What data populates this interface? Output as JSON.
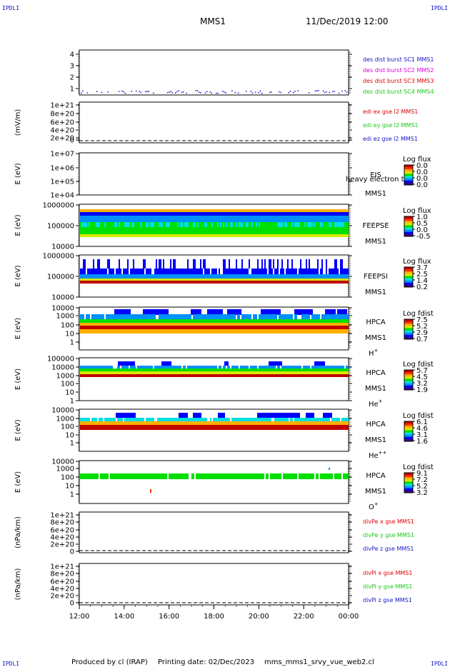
{
  "corner_tag": "IPDLI",
  "header": {
    "mission": "MMS1",
    "datetime": "11/Dec/2019 12:00"
  },
  "footer": {
    "produced_by": "Produced by cl (IRAP)",
    "printing_date": "Printing date: 02/Dec/2023",
    "script": "mms_mms1_srvy_vue_web2.cl"
  },
  "colors": {
    "series_blue": "#1212c8",
    "series_magenta": "#e000e0",
    "series_red": "#e00000",
    "series_green": "#18c818"
  },
  "colormap": [
    "#3a0080",
    "#0000ff",
    "#0090ff",
    "#00e0e0",
    "#00e000",
    "#d8e800",
    "#ffb000",
    "#ff3000",
    "#c00000"
  ],
  "chart_data": [
    {
      "id": "burst",
      "type": "scatter",
      "ylabel": "",
      "yticks": [
        "4",
        "3",
        "2",
        "1"
      ],
      "ylim": [
        0.5,
        4.3
      ],
      "legend": [
        "des dist burst SC1 MMS1",
        "des dist burst SC2 MMS2",
        "des dist burst SC3 MMS3",
        "des dist burst SC4 MMS4"
      ]
    },
    {
      "id": "edi",
      "type": "line",
      "ylabel": "(mV/m)",
      "yticks": [
        "1e+21",
        "8e+20",
        "6e+20",
        "4e+20",
        "2e+20",
        "0"
      ],
      "ylim": [
        0,
        1e+21
      ],
      "legend": [
        "edi ex gse l2 MMS1",
        "edi ey gse l2 MMS1",
        "edi ez gse l2 MMS1"
      ]
    },
    {
      "id": "eis",
      "type": "heatmap",
      "ylabel": "E (eV)",
      "yticks": [
        "1e+07",
        "1e+06",
        "1e+05",
        "1e+04"
      ],
      "ylim": [
        10000.0,
        10000000.0
      ],
      "scale": "log",
      "labels": [
        "EIS",
        "MMS1"
      ],
      "overlay": "heavy electron to",
      "colorbar_title": "Log flux",
      "colorbar_ticks": [
        "0.0",
        "0.0",
        "0.0",
        "0.0"
      ]
    },
    {
      "id": "feepse",
      "type": "heatmap",
      "ylabel": "E (eV)",
      "yticks": [
        "1000000",
        "100000",
        "10000"
      ],
      "ylim": [
        10000.0,
        1000000.0
      ],
      "scale": "log",
      "labels": [
        "FEEPSE",
        "MMS1"
      ],
      "colorbar_title": "Log flux",
      "colorbar_ticks": [
        "1.0",
        "0.5",
        "0.0",
        "-0.5"
      ]
    },
    {
      "id": "feepsi",
      "type": "heatmap",
      "ylabel": "E (eV)",
      "yticks": [
        "1000000",
        "100000",
        "10000"
      ],
      "ylim": [
        10000.0,
        1000000.0
      ],
      "scale": "log",
      "labels": [
        "FEEPSI",
        "MMS1"
      ],
      "colorbar_title": "Log flux",
      "colorbar_ticks": [
        "3.7",
        "2.5",
        "1.4",
        "0.2"
      ]
    },
    {
      "id": "hpca_h",
      "type": "heatmap",
      "ylabel": "E (eV)",
      "yticks": [
        "10000",
        "1000",
        "100",
        "10",
        "1"
      ],
      "ylim": [
        1,
        40000
      ],
      "scale": "log",
      "labels": [
        "HPCA",
        "MMS1"
      ],
      "species": "H",
      "charge": "+",
      "colorbar_title": "Log fdist",
      "colorbar_ticks": [
        "7.5",
        "5.2",
        "2.9",
        "0.7"
      ]
    },
    {
      "id": "hpca_he",
      "type": "heatmap",
      "ylabel": "E (eV)",
      "yticks": [
        "100000",
        "10000",
        "1000",
        "100",
        "10",
        "1"
      ],
      "ylim": [
        1,
        100000
      ],
      "scale": "log",
      "labels": [
        "HPCA",
        "MMS1"
      ],
      "species": "He",
      "charge": "+",
      "colorbar_title": "Log fdist",
      "colorbar_ticks": [
        "5.7",
        "4.5",
        "3.2",
        "1.9"
      ]
    },
    {
      "id": "hpca_hepp",
      "type": "heatmap",
      "ylabel": "E (eV)",
      "yticks": [
        "10000",
        "1000",
        "100",
        "10",
        "1"
      ],
      "ylim": [
        1,
        40000
      ],
      "scale": "log",
      "labels": [
        "HPCA",
        "MMS1"
      ],
      "species": "He",
      "charge": "++",
      "colorbar_title": "Log fdist",
      "colorbar_ticks": [
        "6.1",
        "4.6",
        "3.1",
        "1.6"
      ]
    },
    {
      "id": "hpca_o",
      "type": "heatmap",
      "ylabel": "E (eV)",
      "yticks": [
        "10000",
        "1000",
        "100",
        "10",
        "1"
      ],
      "ylim": [
        1,
        40000
      ],
      "scale": "log",
      "labels": [
        "HPCA",
        "MMS1"
      ],
      "species": "O",
      "charge": "+",
      "colorbar_title": "Log fdist",
      "colorbar_ticks": [
        "9.1",
        "7.2",
        "5.2",
        "3.2"
      ]
    },
    {
      "id": "divpe",
      "type": "line",
      "ylabel": "(nPa/km)",
      "yticks": [
        "1e+21",
        "8e+20",
        "6e+20",
        "4e+20",
        "2e+20",
        "0"
      ],
      "ylim": [
        0,
        1e+21
      ],
      "legend": [
        "divPe x gse MMS1",
        "divPe y gse MMS1",
        "divPe z gse MMS1"
      ]
    },
    {
      "id": "divpi",
      "type": "line",
      "ylabel": "(nPa/km)",
      "yticks": [
        "1e+21",
        "8e+20",
        "6e+20",
        "4e+20",
        "2e+20",
        "0"
      ],
      "ylim": [
        0,
        1e+21
      ],
      "legend": [
        "divPi x gse MMS1",
        "divPi y gse MMS1",
        "divPi z gse MMS1"
      ]
    }
  ],
  "x_axis": {
    "ticks": [
      "12:00",
      "14:00",
      "16:00",
      "18:00",
      "20:00",
      "22:00",
      "00:00"
    ],
    "range_hours": [
      12,
      24
    ]
  }
}
